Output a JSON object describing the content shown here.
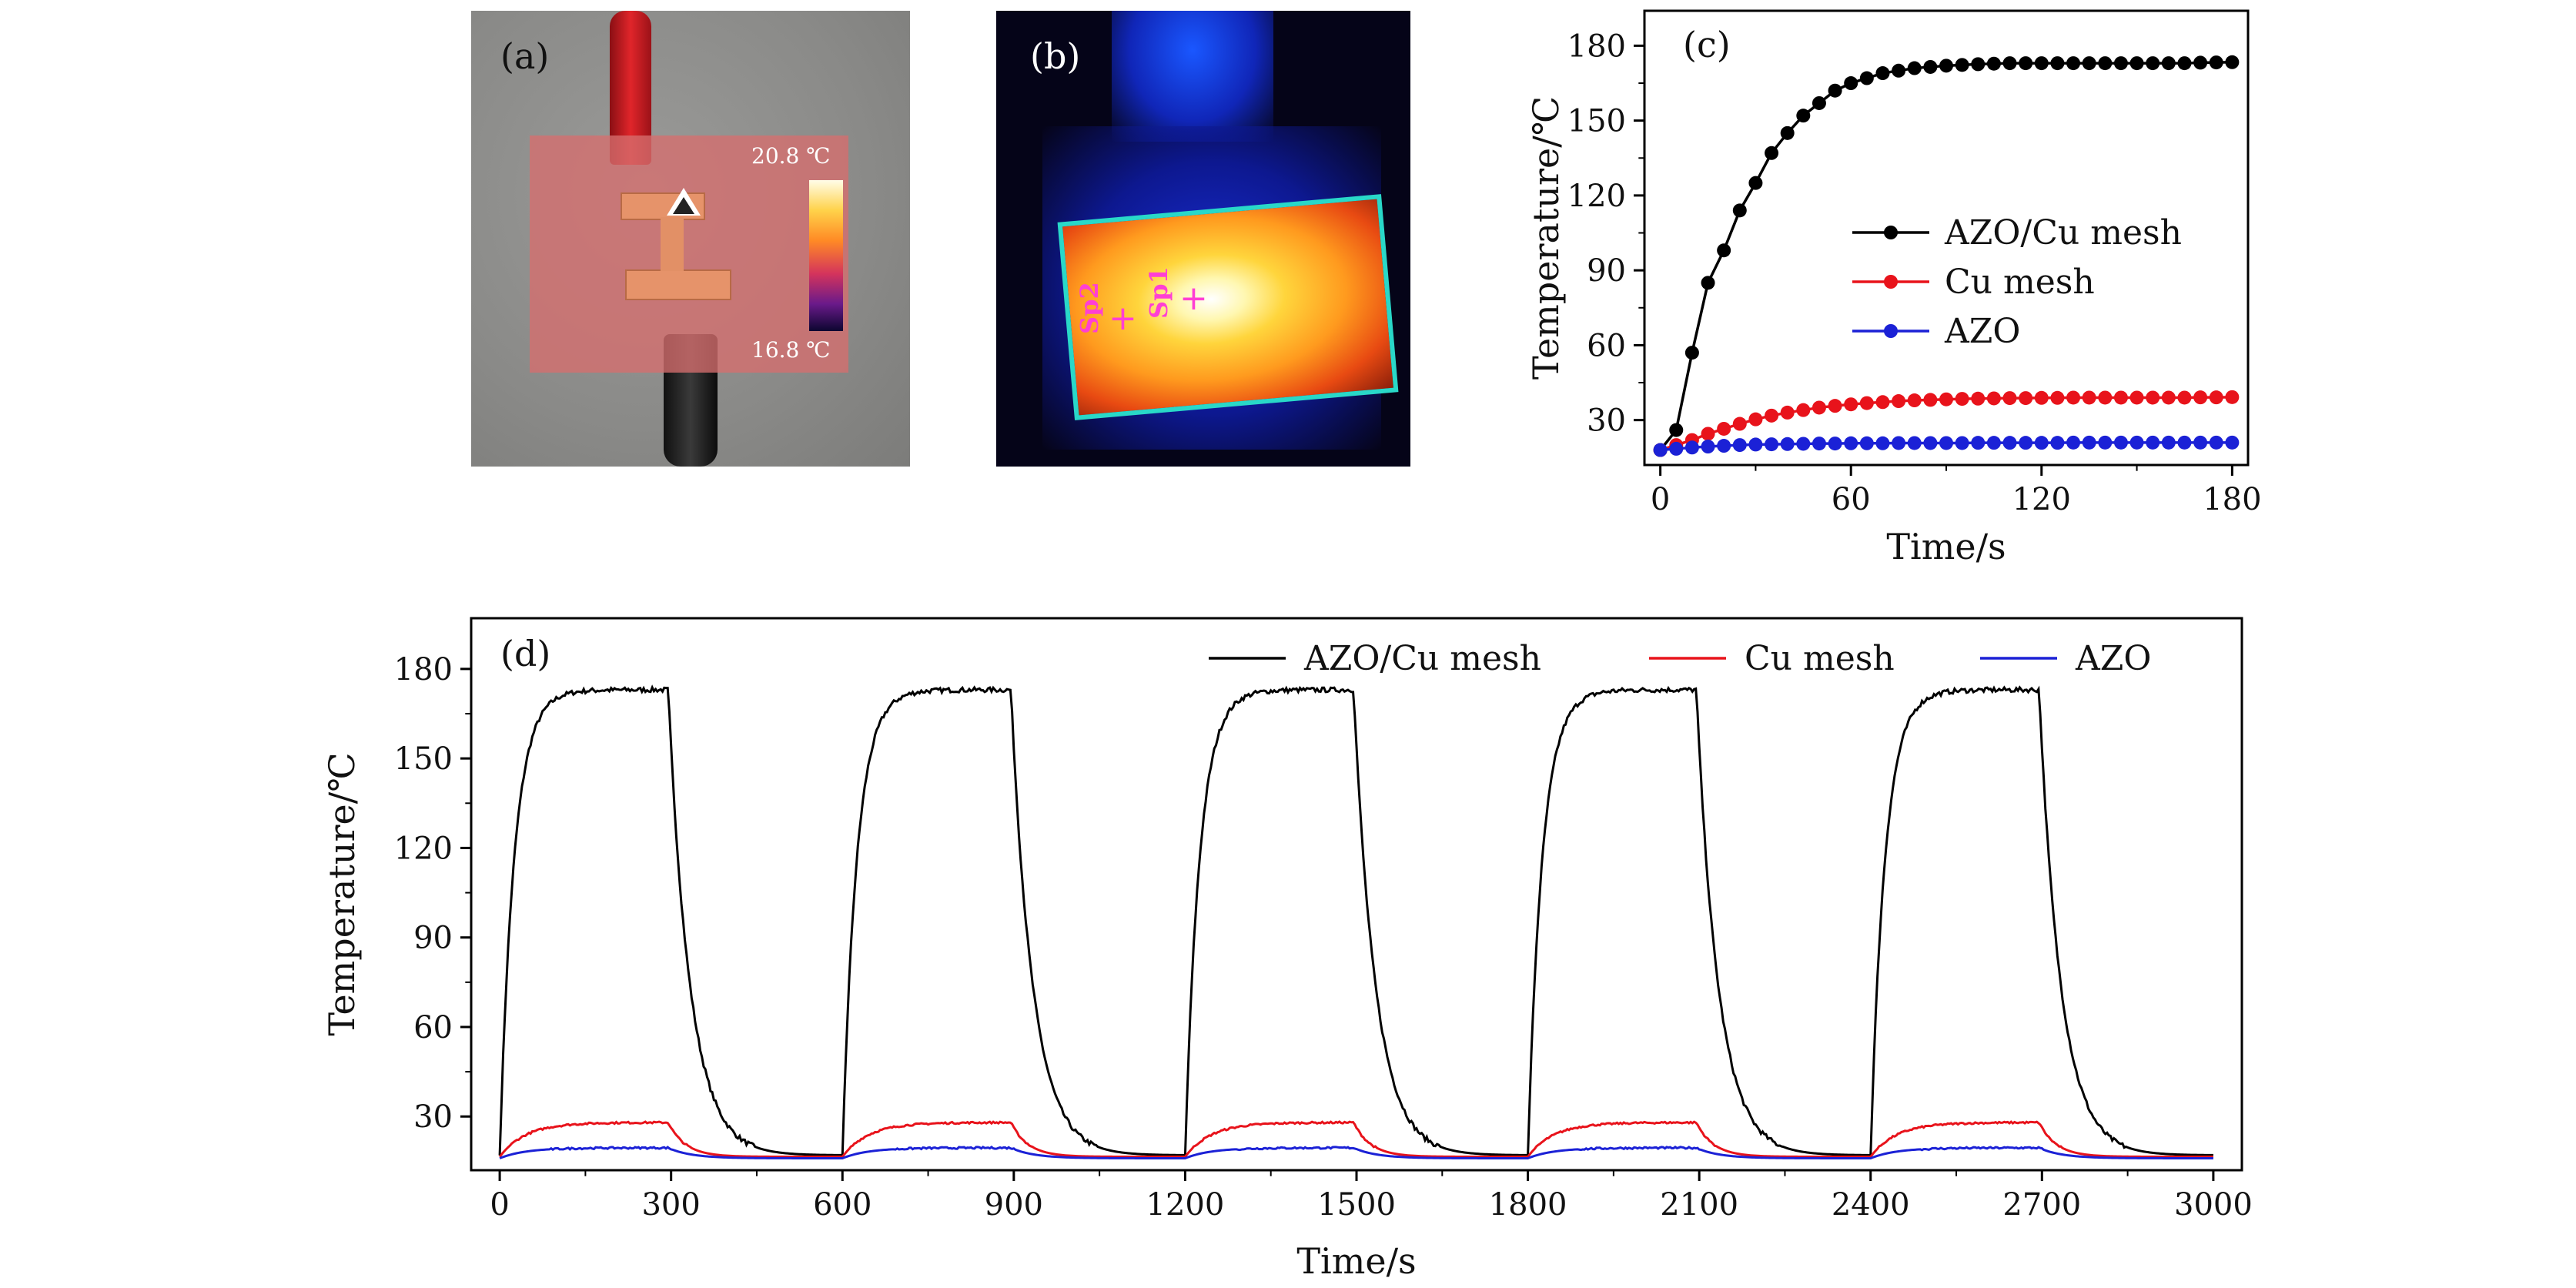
{
  "panel_a": {
    "tag": "(a)",
    "colorbar_max": "20.8 ℃",
    "colorbar_min": "16.8 ℃"
  },
  "panel_b": {
    "tag": "(b)",
    "spot_1": "Sp1",
    "spot_2": "Sp2"
  },
  "colors": {
    "azo_cu": "#000000",
    "cu": "#e8131b",
    "azo": "#1b21d6"
  },
  "chart_data": [
    {
      "panel": "(c)",
      "type": "line",
      "xlabel": "Time/s",
      "ylabel": "Temperature/℃",
      "xlim": [
        -5,
        185
      ],
      "ylim": [
        12,
        194
      ],
      "xticks": [
        0,
        60,
        120,
        180
      ],
      "yticks": [
        30,
        60,
        90,
        120,
        150,
        180
      ],
      "legend_position": "center-right",
      "markers": true,
      "x": [
        0,
        5,
        10,
        15,
        20,
        25,
        30,
        35,
        40,
        45,
        50,
        55,
        60,
        65,
        70,
        75,
        80,
        85,
        90,
        95,
        100,
        105,
        110,
        115,
        120,
        125,
        130,
        135,
        140,
        145,
        150,
        155,
        160,
        165,
        170,
        175,
        180
      ],
      "series": [
        {
          "name": "AZO/Cu mesh",
          "color": "#000000",
          "values": [
            18,
            26,
            57,
            85,
            98,
            114,
            125,
            137,
            145,
            152,
            157,
            162,
            165,
            167,
            169,
            170,
            171,
            171.5,
            172,
            172.3,
            172.6,
            172.8,
            173,
            173,
            173,
            173,
            173,
            173,
            173,
            173,
            173,
            173,
            173,
            173,
            173.2,
            173.3,
            173.4
          ]
        },
        {
          "name": "Cu mesh",
          "color": "#e8131b",
          "values": [
            18,
            20,
            22,
            24.5,
            26.5,
            28.5,
            30.3,
            31.8,
            33,
            34,
            35,
            35.7,
            36.3,
            36.8,
            37.2,
            37.6,
            37.9,
            38.1,
            38.3,
            38.5,
            38.6,
            38.7,
            38.8,
            38.8,
            38.9,
            38.9,
            39,
            39,
            39,
            39,
            39,
            39,
            39,
            39,
            39.1,
            39.1,
            39.2
          ]
        },
        {
          "name": "AZO",
          "color": "#1b21d6",
          "values": [
            18,
            18.5,
            19,
            19.4,
            19.7,
            20,
            20.2,
            20.3,
            20.4,
            20.5,
            20.6,
            20.6,
            20.7,
            20.7,
            20.7,
            20.8,
            20.8,
            20.8,
            20.8,
            20.8,
            20.9,
            20.9,
            20.9,
            20.9,
            20.9,
            20.9,
            21,
            21,
            21,
            21,
            21,
            21,
            21,
            21,
            21,
            21,
            21
          ]
        }
      ]
    },
    {
      "panel": "(d)",
      "type": "line",
      "xlabel": "Time/s",
      "ylabel": "Temperature/℃",
      "xlim": [
        -50,
        3050
      ],
      "ylim": [
        12,
        197
      ],
      "xticks": [
        0,
        300,
        600,
        900,
        1200,
        1500,
        1800,
        2100,
        2400,
        2700,
        3000
      ],
      "yticks": [
        30,
        60,
        90,
        120,
        150,
        180
      ],
      "legend_position": "top-right",
      "markers": false,
      "cycles": 5,
      "cycle_period_s": 600,
      "heating_time_s": 295,
      "series": [
        {
          "name": "AZO/Cu mesh",
          "color": "#000000",
          "base": 17,
          "plateau": 173
        },
        {
          "name": "Cu mesh",
          "color": "#e8131b",
          "base": 16.5,
          "plateau": 28
        },
        {
          "name": "AZO",
          "color": "#1b21d6",
          "base": 16,
          "plateau": 19.5
        }
      ]
    }
  ]
}
